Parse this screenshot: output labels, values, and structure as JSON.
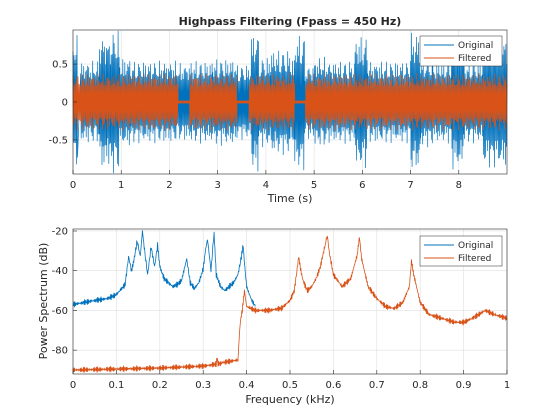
{
  "colors": {
    "original": "#0072BD",
    "filtered": "#D95319",
    "grid": "#DFDFDF",
    "axis": "#262626"
  },
  "chart_data": [
    {
      "type": "line",
      "title": "Highpass Filtering  (Fpass = 450 Hz)",
      "xlabel": "Time (s)",
      "ylabel": "",
      "xlim": [
        0,
        9
      ],
      "ylim": [
        -0.95,
        0.95
      ],
      "xticks": [
        0,
        1,
        2,
        3,
        4,
        5,
        6,
        7,
        8
      ],
      "xtick_labels": [
        "0",
        "1",
        "2",
        "3",
        "4",
        "5",
        "6",
        "7",
        "8"
      ],
      "yticks": [
        -0.5,
        0,
        0.5
      ],
      "ytick_labels": [
        "-0.5",
        "0",
        "0.5"
      ],
      "grid": true,
      "legend": "top-right",
      "series": [
        {
          "name": "Original",
          "segments": [
            {
              "t": [
                0.0,
                0.1
              ],
              "peak": 0.9
            },
            {
              "t": [
                0.16,
                0.55
              ],
              "peak": 0.55
            },
            {
              "t": [
                0.55,
                0.7
              ],
              "peak": 0.9
            },
            {
              "t": [
                0.7,
                0.78
              ],
              "peak": 0.85
            },
            {
              "t": [
                0.78,
                0.96
              ],
              "peak": 0.95
            },
            {
              "t": [
                0.96,
                1.2
              ],
              "peak": 0.6
            },
            {
              "t": [
                1.2,
                2.15
              ],
              "peak": 0.55
            },
            {
              "t": [
                2.15,
                2.45
              ],
              "peak": 0.52
            },
            {
              "t": [
                2.45,
                2.9
              ],
              "peak": 0.55
            },
            {
              "t": [
                2.9,
                3.38
              ],
              "peak": 0.58
            },
            {
              "t": [
                3.38,
                3.7
              ],
              "peak": 0.5
            },
            {
              "t": [
                3.7,
                3.85
              ],
              "peak": 0.93
            },
            {
              "t": [
                3.85,
                4.1
              ],
              "peak": 0.6
            },
            {
              "t": [
                4.1,
                4.5
              ],
              "peak": 0.7
            },
            {
              "t": [
                4.5,
                4.6
              ],
              "peak": 0.6
            },
            {
              "t": [
                4.6,
                4.8
              ],
              "peak": 0.9
            },
            {
              "t": [
                4.8,
                5.0
              ],
              "peak": 0.5
            },
            {
              "t": [
                5.0,
                5.3
              ],
              "peak": 0.6
            },
            {
              "t": [
                5.3,
                5.85
              ],
              "peak": 0.55
            },
            {
              "t": [
                5.85,
                6.1
              ],
              "peak": 0.88
            },
            {
              "t": [
                6.1,
                6.4
              ],
              "peak": 0.55
            },
            {
              "t": [
                6.4,
                7.0
              ],
              "peak": 0.55
            },
            {
              "t": [
                7.0,
                7.2
              ],
              "peak": 0.93
            },
            {
              "t": [
                7.2,
                7.45
              ],
              "peak": 0.6
            },
            {
              "t": [
                7.45,
                7.85
              ],
              "peak": 0.55
            },
            {
              "t": [
                7.85,
                8.1
              ],
              "peak": 0.9
            },
            {
              "t": [
                8.1,
                8.5
              ],
              "peak": 0.55
            },
            {
              "t": [
                8.5,
                9.0
              ],
              "peak": 0.88
            }
          ]
        },
        {
          "name": "Filtered",
          "segments": [
            {
              "t": [
                0.0,
                2.18
              ],
              "peak": 0.38
            },
            {
              "t": [
                2.18,
                2.42
              ],
              "peak": 0.02
            },
            {
              "t": [
                2.42,
                3.4
              ],
              "peak": 0.38
            },
            {
              "t": [
                3.4,
                3.65
              ],
              "peak": 0.02
            },
            {
              "t": [
                3.65,
                4.6
              ],
              "peak": 0.38
            },
            {
              "t": [
                4.6,
                4.82
              ],
              "peak": 0.02
            },
            {
              "t": [
                4.82,
                9.0
              ],
              "peak": 0.38
            }
          ]
        }
      ]
    },
    {
      "type": "line",
      "title": "",
      "xlabel": "Frequency (kHz)",
      "ylabel": "Power Spectrum (dB)",
      "xlim": [
        0,
        1
      ],
      "ylim": [
        -92,
        -19
      ],
      "xticks": [
        0,
        0.1,
        0.2,
        0.3,
        0.4,
        0.5,
        0.6,
        0.7,
        0.8,
        0.9,
        1
      ],
      "xtick_labels": [
        "0",
        "0.1",
        "0.2",
        "0.3",
        "0.4",
        "0.5",
        "0.6",
        "0.7",
        "0.8",
        "0.9",
        "1"
      ],
      "yticks": [
        -80,
        -60,
        -40,
        -20
      ],
      "ytick_labels": [
        "-80",
        "-60",
        "-40",
        "-20"
      ],
      "grid": true,
      "legend": "top-right",
      "series": [
        {
          "name": "Original",
          "x": [
            0,
            0.05,
            0.08,
            0.1,
            0.12,
            0.128,
            0.135,
            0.14,
            0.148,
            0.155,
            0.16,
            0.165,
            0.172,
            0.18,
            0.188,
            0.195,
            0.2,
            0.21,
            0.22,
            0.23,
            0.24,
            0.25,
            0.262,
            0.27,
            0.28,
            0.29,
            0.3,
            0.305,
            0.31,
            0.318,
            0.325,
            0.33,
            0.34,
            0.35,
            0.36,
            0.37,
            0.38,
            0.388,
            0.392,
            0.395,
            0.4,
            0.41,
            0.42
          ],
          "y": [
            -57,
            -55,
            -54,
            -52,
            -47,
            -33,
            -40,
            -35,
            -25,
            -33,
            -20,
            -30,
            -42,
            -28,
            -38,
            -27,
            -38,
            -44,
            -46,
            -48,
            -47,
            -45,
            -34,
            -46,
            -49,
            -46,
            -39,
            -30,
            -24,
            -40,
            -21,
            -42,
            -48,
            -50,
            -48,
            -46,
            -42,
            -33,
            -27,
            -36,
            -48,
            -54,
            -58
          ]
        },
        {
          "name": "Filtered",
          "x": [
            0,
            0.1,
            0.2,
            0.3,
            0.33,
            0.332,
            0.334,
            0.35,
            0.38,
            0.384,
            0.386,
            0.39,
            0.395,
            0.4,
            0.42,
            0.45,
            0.48,
            0.5,
            0.51,
            0.52,
            0.525,
            0.53,
            0.54,
            0.55,
            0.56,
            0.57,
            0.58,
            0.586,
            0.59,
            0.6,
            0.62,
            0.64,
            0.655,
            0.66,
            0.665,
            0.68,
            0.7,
            0.72,
            0.74,
            0.76,
            0.775,
            0.78,
            0.785,
            0.8,
            0.82,
            0.85,
            0.88,
            0.9,
            0.92,
            0.95,
            0.97,
            1.0
          ],
          "y": [
            -90,
            -89.5,
            -89,
            -88,
            -87,
            -84,
            -87,
            -86,
            -85,
            -70,
            -65,
            -60,
            -50,
            -58,
            -60,
            -60,
            -59,
            -55,
            -50,
            -33,
            -40,
            -45,
            -50,
            -48,
            -44,
            -38,
            -28,
            -22,
            -30,
            -42,
            -48,
            -44,
            -32,
            -23,
            -34,
            -48,
            -54,
            -58,
            -59,
            -56,
            -48,
            -35,
            -42,
            -56,
            -62,
            -64,
            -66,
            -66,
            -64,
            -60,
            -62,
            -64
          ]
        }
      ]
    }
  ]
}
